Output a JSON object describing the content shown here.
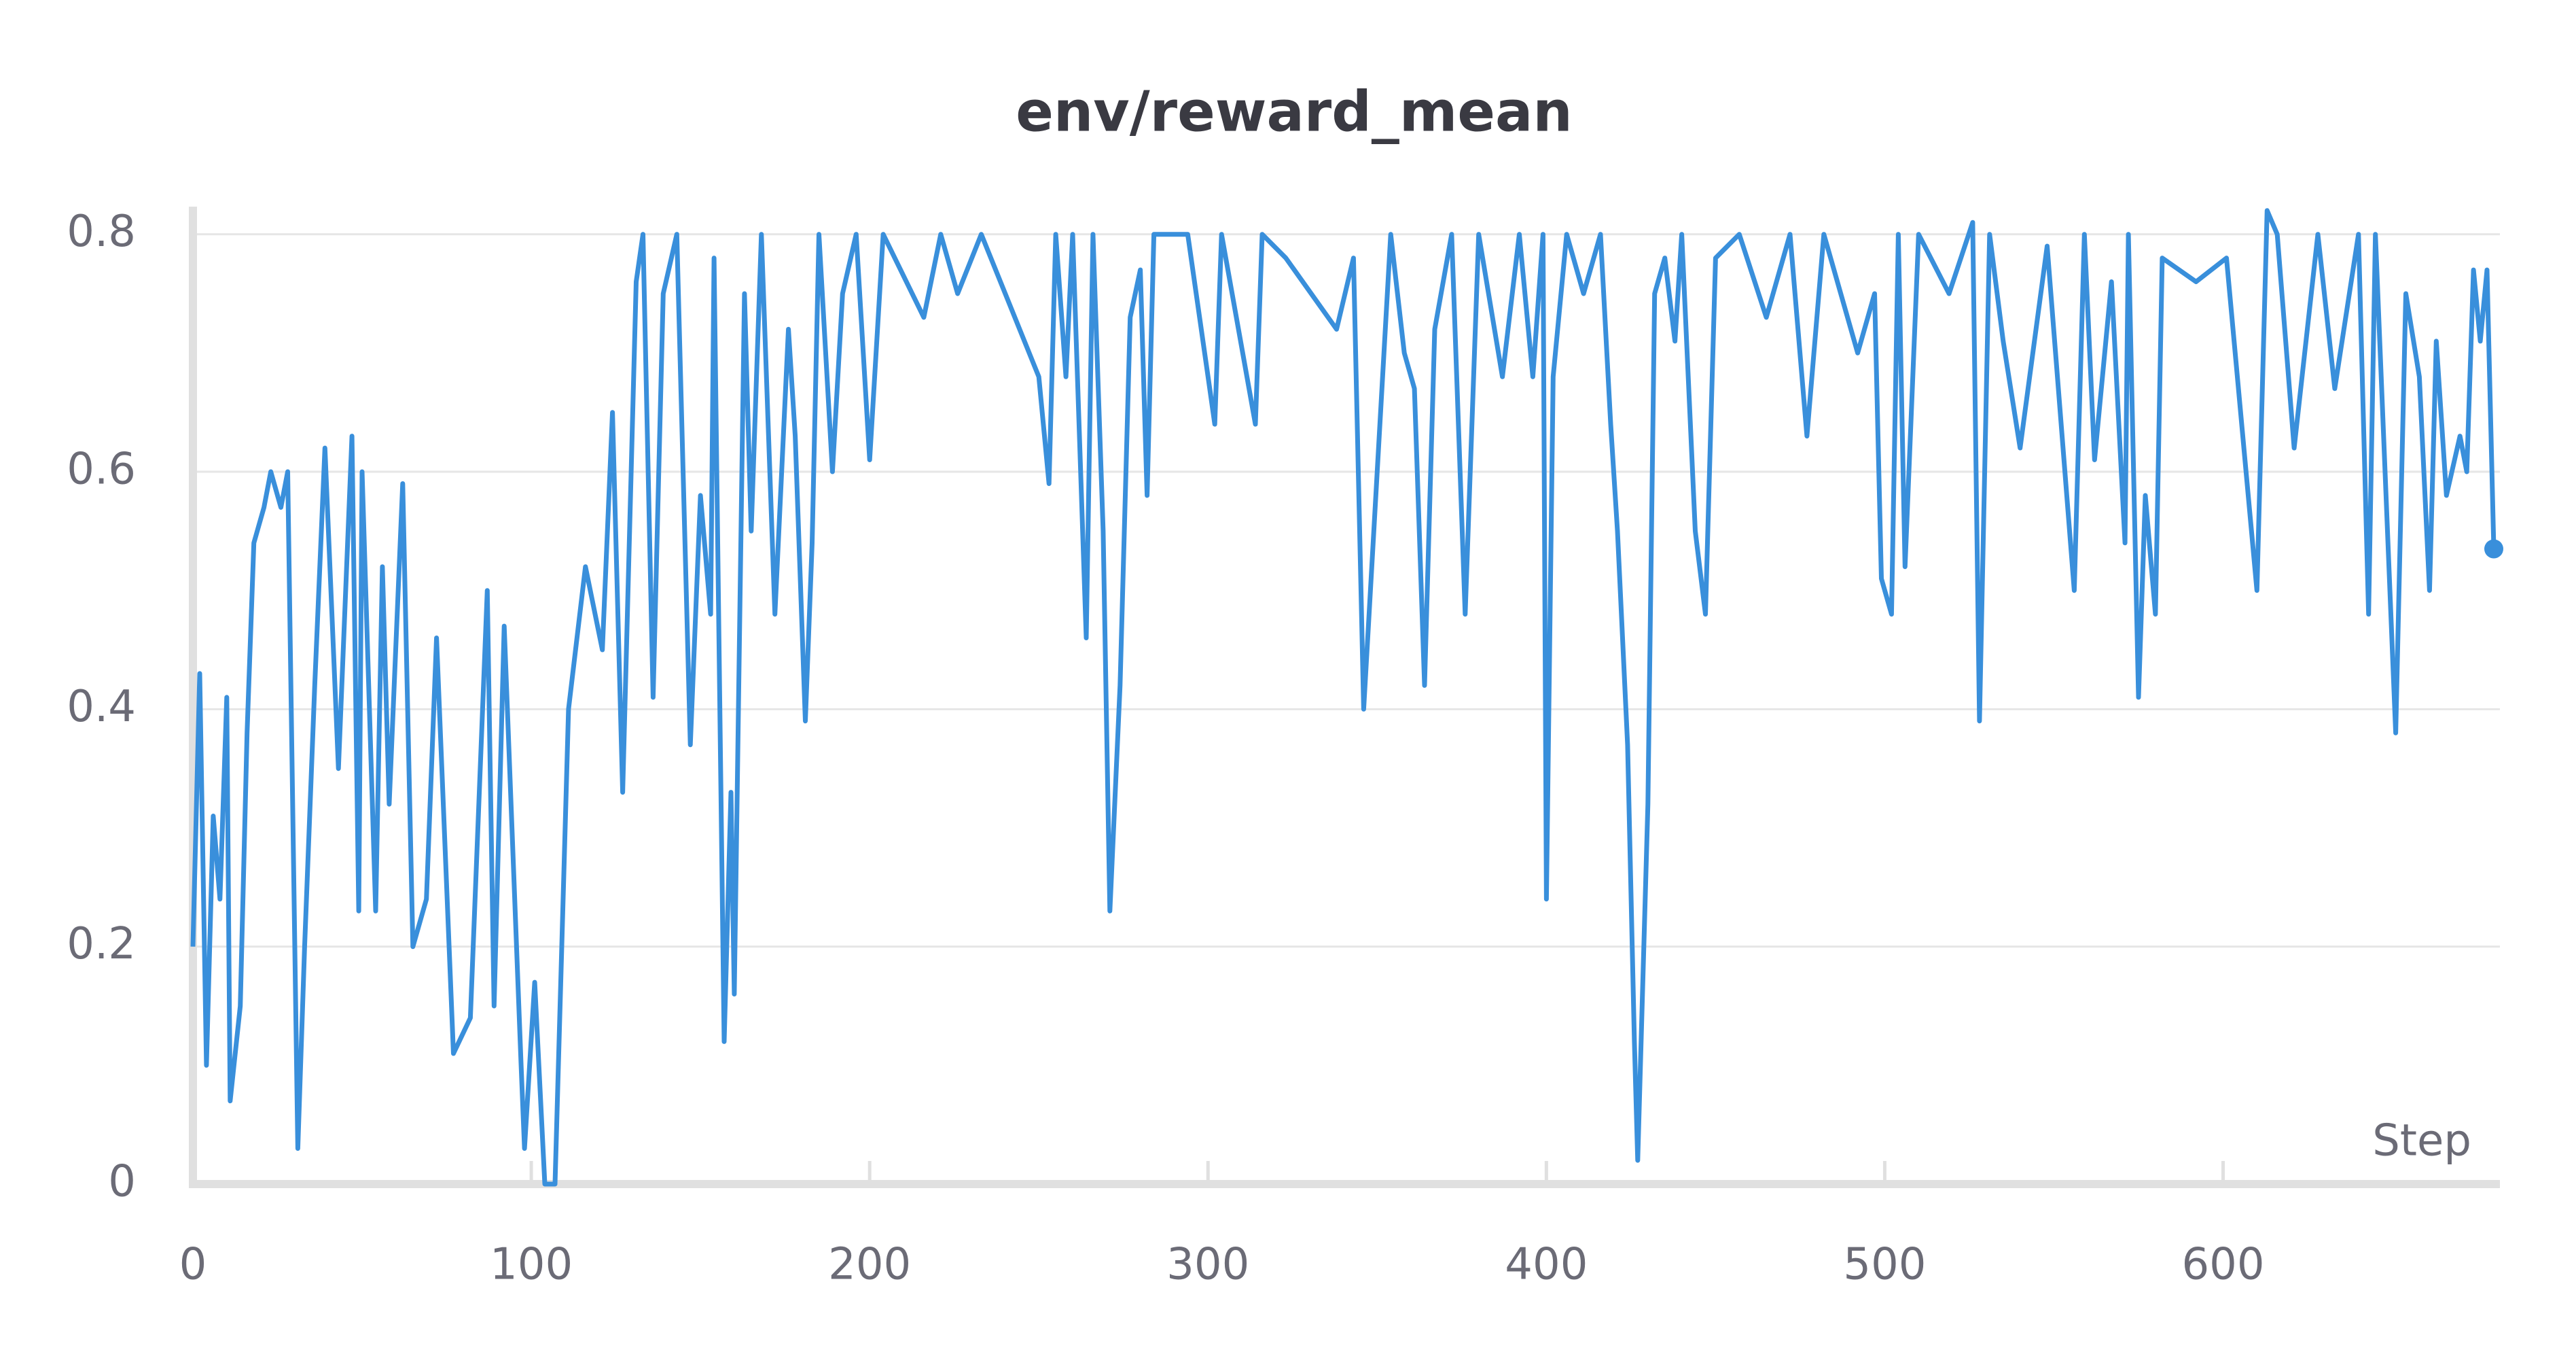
{
  "chart_data": {
    "type": "line",
    "title": "env/reward_mean",
    "x_label": "Step",
    "xlim": [
      0,
      680
    ],
    "xticks": [
      0,
      100,
      200,
      300,
      400,
      500,
      600
    ],
    "ylim": [
      0,
      0.825
    ],
    "yticks": [
      0,
      0.2,
      0.4,
      0.6,
      0.8
    ],
    "grid": true,
    "series": [
      {
        "name": "env/reward_mean",
        "color": "#398fdb",
        "x": [
          0,
          2,
          4,
          6,
          8,
          10,
          11,
          14,
          16,
          18,
          21,
          23,
          26,
          28,
          31,
          33,
          36,
          39,
          43,
          47,
          49,
          50,
          54,
          56,
          58,
          62,
          65,
          69,
          72,
          77,
          82,
          87,
          89,
          92,
          97,
          98,
          101,
          104,
          107,
          111,
          116,
          121,
          124,
          127,
          131,
          133,
          136,
          139,
          143,
          147,
          150,
          153,
          154,
          157,
          159,
          160,
          163,
          165,
          168,
          172,
          176,
          178,
          181,
          183,
          185,
          189,
          192,
          196,
          200,
          204,
          216,
          221,
          226,
          233,
          250,
          253,
          255,
          258,
          260,
          264,
          266,
          269,
          271,
          274,
          277,
          280,
          282,
          284,
          294,
          300,
          302,
          304,
          314,
          316,
          323,
          338,
          343,
          346,
          350,
          354,
          358,
          361,
          364,
          367,
          372,
          376,
          380,
          387,
          392,
          396,
          399,
          400,
          402,
          406,
          411,
          416,
          419,
          421,
          424,
          426,
          427,
          430,
          432,
          435,
          438,
          440,
          444,
          447,
          450,
          457,
          465,
          472,
          477,
          482,
          492,
          497,
          499,
          502,
          504,
          506,
          510,
          519,
          526,
          528,
          531,
          535,
          540,
          548,
          556,
          559,
          562,
          567,
          571,
          572,
          575,
          577,
          580,
          582,
          592,
          601,
          610,
          613,
          616,
          621,
          628,
          633,
          640,
          643,
          645,
          651,
          654,
          658,
          661,
          663,
          666,
          670,
          672,
          674,
          676,
          678,
          680
        ],
        "values": [
          0.2,
          0.43,
          0.1,
          0.31,
          0.24,
          0.41,
          0.07,
          0.15,
          0.38,
          0.54,
          0.57,
          0.6,
          0.57,
          0.6,
          0.03,
          0.2,
          0.42,
          0.62,
          0.35,
          0.63,
          0.23,
          0.6,
          0.23,
          0.52,
          0.32,
          0.59,
          0.2,
          0.24,
          0.46,
          0.11,
          0.14,
          0.5,
          0.15,
          0.47,
          0.1,
          0.03,
          0.17,
          0.0,
          0.0,
          0.4,
          0.52,
          0.45,
          0.65,
          0.33,
          0.76,
          0.8,
          0.41,
          0.75,
          0.8,
          0.37,
          0.58,
          0.48,
          0.78,
          0.12,
          0.33,
          0.16,
          0.75,
          0.55,
          0.8,
          0.48,
          0.72,
          0.63,
          0.39,
          0.54,
          0.8,
          0.6,
          0.75,
          0.8,
          0.61,
          0.8,
          0.73,
          0.8,
          0.75,
          0.8,
          0.68,
          0.59,
          0.8,
          0.68,
          0.8,
          0.46,
          0.8,
          0.55,
          0.23,
          0.42,
          0.73,
          0.77,
          0.58,
          0.8,
          0.8,
          0.68,
          0.64,
          0.8,
          0.64,
          0.8,
          0.78,
          0.72,
          0.78,
          0.4,
          0.6,
          0.8,
          0.7,
          0.67,
          0.42,
          0.72,
          0.8,
          0.48,
          0.8,
          0.68,
          0.8,
          0.68,
          0.8,
          0.24,
          0.68,
          0.8,
          0.75,
          0.8,
          0.64,
          0.55,
          0.37,
          0.12,
          0.02,
          0.32,
          0.75,
          0.78,
          0.71,
          0.8,
          0.55,
          0.48,
          0.78,
          0.8,
          0.73,
          0.8,
          0.63,
          0.8,
          0.7,
          0.75,
          0.51,
          0.48,
          0.8,
          0.52,
          0.8,
          0.75,
          0.81,
          0.39,
          0.8,
          0.71,
          0.62,
          0.79,
          0.5,
          0.8,
          0.61,
          0.76,
          0.54,
          0.8,
          0.41,
          0.58,
          0.48,
          0.78,
          0.76,
          0.78,
          0.5,
          0.82,
          0.8,
          0.62,
          0.8,
          0.67,
          0.8,
          0.48,
          0.8,
          0.38,
          0.75,
          0.68,
          0.5,
          0.71,
          0.58,
          0.63,
          0.6,
          0.77,
          0.71,
          0.77,
          0.535
        ]
      }
    ]
  }
}
